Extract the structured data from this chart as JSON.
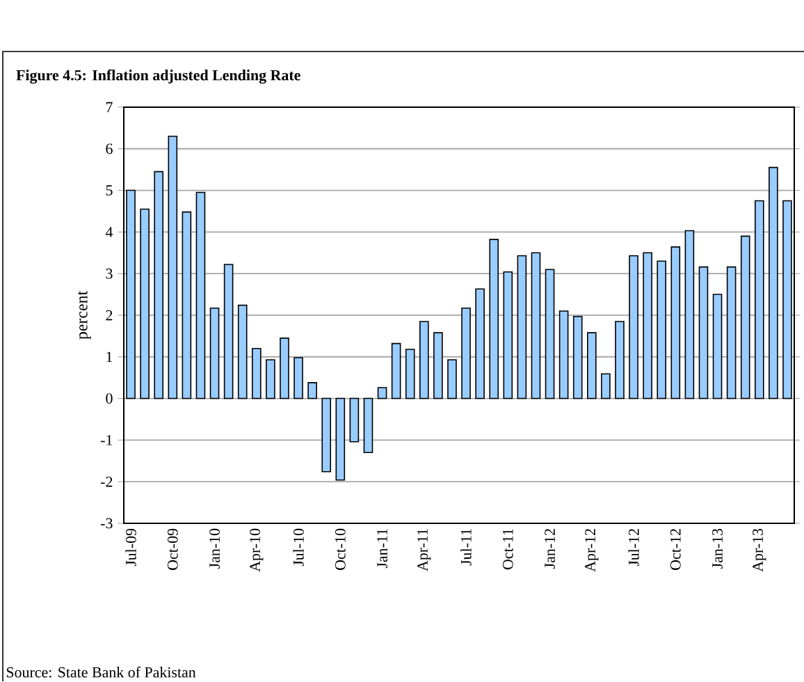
{
  "chart_data": {
    "type": "bar",
    "title": "Figure 4.5: Inflation adjusted Lending Rate",
    "ylabel": "percent",
    "categories": [
      "Jul-09",
      null,
      null,
      "Oct-09",
      null,
      null,
      "Jan-10",
      null,
      null,
      "Apr-10",
      null,
      null,
      "Jul-10",
      null,
      null,
      "Oct-10",
      null,
      null,
      "Jan-11",
      null,
      null,
      "Apr-11",
      null,
      null,
      "Jul-11",
      null,
      null,
      "Oct-11",
      null,
      null,
      "Jan-12",
      null,
      null,
      "Apr-12",
      null,
      null,
      "Jul-12",
      null,
      null,
      "Oct-12",
      null,
      null,
      "Jan-13",
      null,
      null,
      "Apr-13",
      null,
      null
    ],
    "values": [
      5.0,
      4.55,
      5.45,
      6.3,
      4.48,
      4.95,
      2.17,
      3.22,
      2.24,
      1.2,
      0.93,
      1.45,
      0.98,
      0.38,
      -1.76,
      -1.96,
      -1.04,
      -1.3,
      0.26,
      1.32,
      1.18,
      1.85,
      1.58,
      0.93,
      2.17,
      2.63,
      3.82,
      3.04,
      3.43,
      3.5,
      3.1,
      2.1,
      1.97,
      1.58,
      0.59,
      1.85,
      3.43,
      3.5,
      3.3,
      3.64,
      4.03,
      3.16,
      2.5,
      3.16,
      3.9,
      4.75,
      5.55,
      4.75
    ],
    "color": "#99ccff",
    "ylim": [
      -3,
      7
    ],
    "yticks": [
      -3,
      -2,
      -1,
      0,
      1,
      2,
      3,
      4,
      5,
      6,
      7
    ],
    "grid": "y",
    "annotations": [
      "Source: State Bank of Pakistan"
    ]
  }
}
